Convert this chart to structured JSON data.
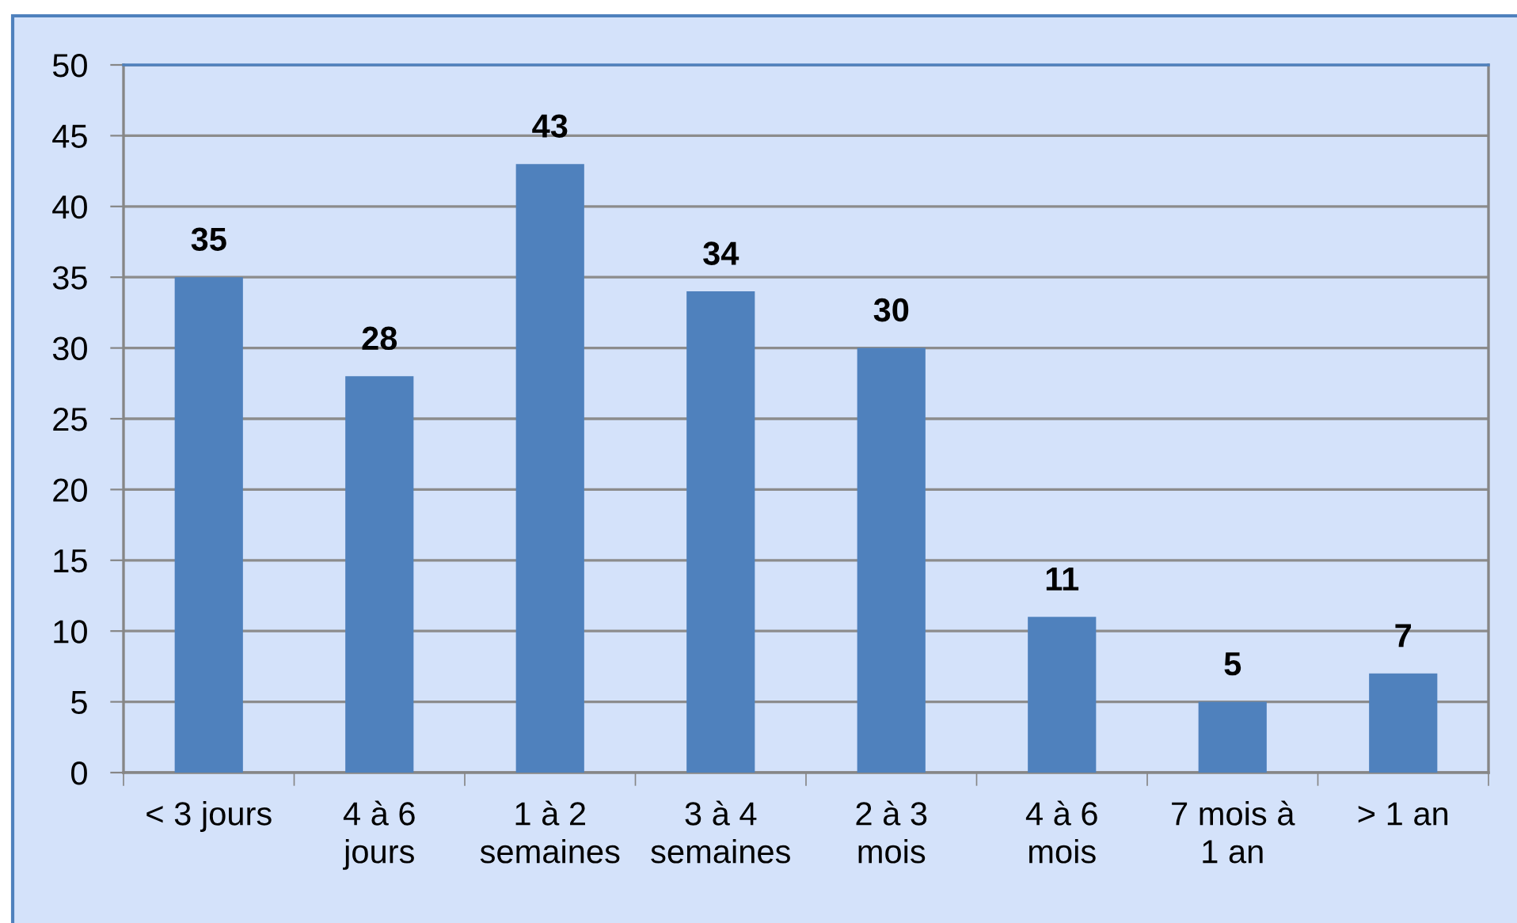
{
  "chart_data": {
    "type": "bar",
    "categories": [
      "< 3 jours",
      "4 à 6\njours",
      "1 à 2\nsemaines",
      "3 à 4\nsemaines",
      "2 à 3\nmois",
      "4 à 6\nmois",
      "7 mois à\n1 an",
      "> 1 an"
    ],
    "values": [
      35,
      28,
      43,
      34,
      30,
      11,
      5,
      7
    ],
    "color": "#4f81bd",
    "ylim": [
      0,
      50
    ],
    "yticks": [
      0,
      5,
      10,
      15,
      20,
      25,
      30,
      35,
      40,
      45,
      50
    ],
    "grid": "y",
    "data_labels": true
  }
}
